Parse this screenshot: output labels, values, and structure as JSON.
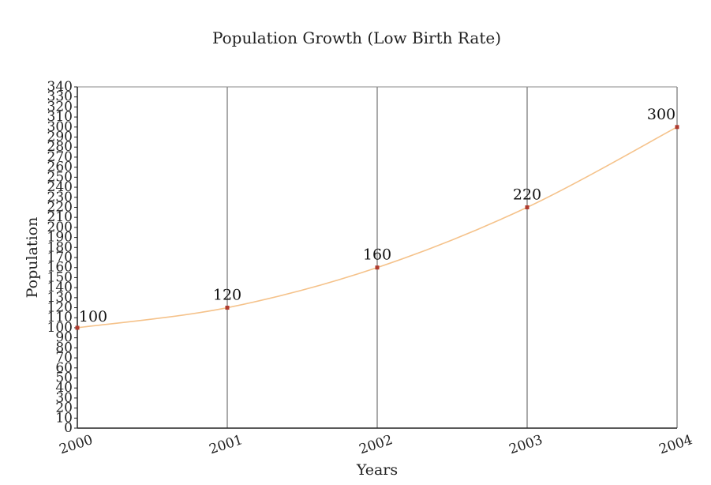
{
  "chart_data": {
    "type": "line",
    "title": "Population Growth (Low Birth Rate)",
    "xlabel": "Years",
    "ylabel": "Population",
    "x": [
      "2000",
      "2001",
      "2002",
      "2003",
      "2004"
    ],
    "series": [
      {
        "values": [
          100,
          120,
          160,
          220,
          300
        ],
        "color": "#f5c28a",
        "marker_color": "#b03a2e"
      }
    ],
    "data_labels": [
      "100",
      "120",
      "160",
      "220",
      "300"
    ],
    "ylim": [
      0,
      340
    ],
    "y_ticks": [
      "0",
      "10",
      "20",
      "30",
      "40",
      "50",
      "60",
      "70",
      "80",
      "90",
      "100",
      "110",
      "120",
      "130",
      "140",
      "150",
      "160",
      "170",
      "180",
      "190",
      "200",
      "210",
      "220",
      "230",
      "240",
      "250",
      "260",
      "270",
      "280",
      "290",
      "300",
      "310",
      "320",
      "330",
      "340"
    ],
    "grid": {
      "vertical": true,
      "horizontal": false
    },
    "x_tick_rotation": "slanted"
  }
}
